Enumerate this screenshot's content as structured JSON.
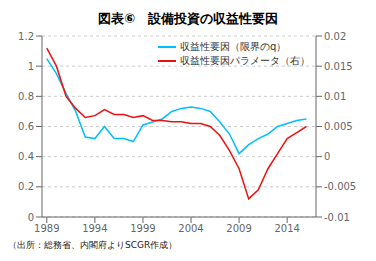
{
  "chart_data": {
    "type": "line",
    "title": "図表⑥　設備投資の収益性要因",
    "annotations": [
      "（出所：総務省、内閣府よりSCGR作成）"
    ],
    "x": [
      1989,
      1990,
      1991,
      1992,
      1993,
      1994,
      1995,
      1996,
      1997,
      1998,
      1999,
      2000,
      2001,
      2002,
      2003,
      2004,
      2005,
      2006,
      2007,
      2008,
      2009,
      2010,
      2011,
      2012,
      2013,
      2014,
      2015,
      2016
    ],
    "xlim": [
      1988.5,
      2017
    ],
    "xticks": [
      1989,
      1994,
      1999,
      2004,
      2009,
      2014
    ],
    "ylim": [
      0,
      1.2
    ],
    "yticks": [
      0,
      0.2,
      0.4,
      0.6,
      0.8,
      1,
      1.2
    ],
    "y2lim": [
      -0.01,
      0.02
    ],
    "y2ticks": [
      -0.01,
      -0.005,
      0,
      0.005,
      0.01,
      0.015,
      0.02
    ],
    "grid": true,
    "legend": "upper right",
    "series": [
      {
        "name": "収益性要因（限界のq）",
        "color": "#00BFFF",
        "values": [
          1.05,
          0.95,
          0.82,
          0.7,
          0.53,
          0.52,
          0.6,
          0.52,
          0.52,
          0.5,
          0.61,
          0.63,
          0.65,
          0.7,
          0.72,
          0.73,
          0.72,
          0.7,
          0.63,
          0.55,
          0.42,
          0.48,
          0.52,
          0.55,
          0.6,
          0.62,
          0.64,
          0.65
        ]
      },
      {
        "name": "収益性要因パラメータ（右）",
        "color": "#EE1111",
        "axis": "y2",
        "values": [
          0.018,
          0.015,
          0.01,
          0.008,
          0.0065,
          0.0068,
          0.0078,
          0.007,
          0.007,
          0.0065,
          0.0068,
          0.006,
          0.006,
          0.0058,
          0.0058,
          0.0055,
          0.0055,
          0.005,
          0.0035,
          0.001,
          -0.002,
          -0.007,
          -0.0055,
          -0.002,
          0.0005,
          0.003,
          0.004,
          0.005
        ]
      }
    ]
  }
}
